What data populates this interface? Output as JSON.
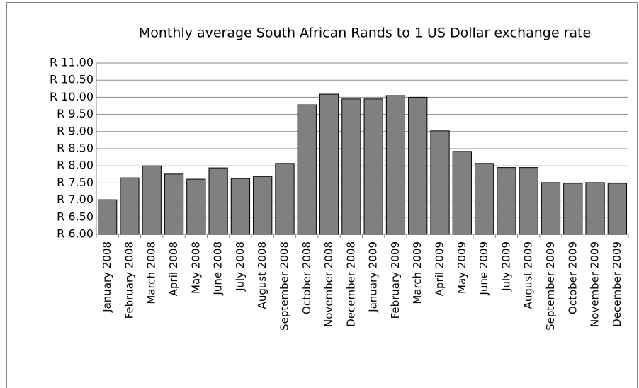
{
  "chart_data": {
    "type": "bar",
    "title": "Monthly average South African Rands to 1 US Dollar exchange rate",
    "categories": [
      "January 2008",
      "February 2008",
      "March 2008",
      "April 2008",
      "May 2008",
      "June 2008",
      "July 2008",
      "August 2008",
      "September 2008",
      "October 2008",
      "November 2008",
      "December 2008",
      "January 2009",
      "February 2009",
      "March 2009",
      "April 2009",
      "May 2009",
      "June 2009",
      "July 2009",
      "August 2009",
      "September 2009",
      "October 2009",
      "November 2009",
      "December 2009"
    ],
    "values": [
      7.01,
      7.65,
      8.0,
      7.76,
      7.61,
      7.94,
      7.63,
      7.69,
      8.07,
      9.78,
      10.09,
      9.95,
      9.95,
      10.05,
      10.0,
      9.02,
      8.42,
      8.07,
      7.95,
      7.95,
      7.51,
      7.49,
      7.51,
      7.49
    ],
    "color": "#808080",
    "ylim": [
      6,
      11
    ],
    "yticks": [
      {
        "value": 6,
        "label": "R 6.00"
      },
      {
        "value": 6.5,
        "label": "R 6.50"
      },
      {
        "value": 7,
        "label": "R 7.00"
      },
      {
        "value": 7.5,
        "label": "R 7.50"
      },
      {
        "value": 8,
        "label": "R 8.00"
      },
      {
        "value": 8.5,
        "label": "R 8.50"
      },
      {
        "value": 9,
        "label": "R 9.00"
      },
      {
        "value": 9.5,
        "label": "R 9.50"
      },
      {
        "value": 10,
        "label": "R 10.00"
      },
      {
        "value": 10.5,
        "label": "R 10.50"
      },
      {
        "value": 11,
        "label": "R 11.00"
      }
    ],
    "grid": true
  }
}
